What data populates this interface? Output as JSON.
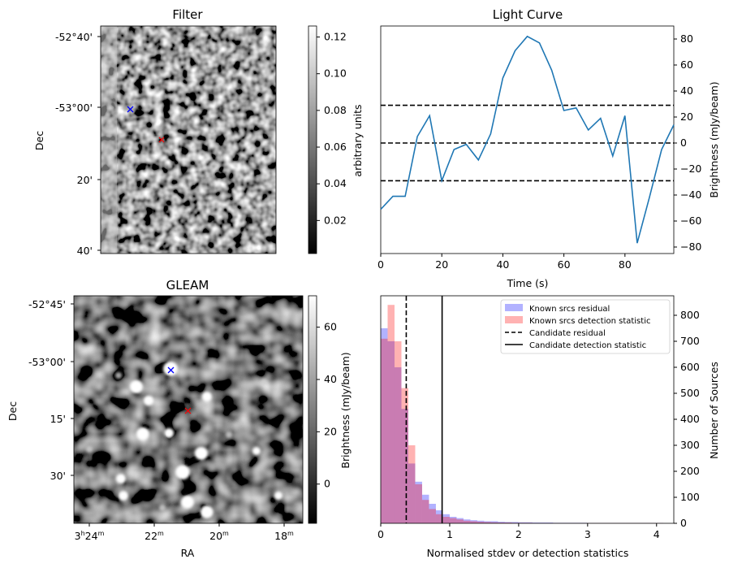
{
  "panels": {
    "filter": {
      "title": "Filter",
      "ylabel": "Dec",
      "yticks": [
        "-52°40'",
        "-53°00'",
        "20'",
        "40'"
      ],
      "colorbar": {
        "label": "arbitrary units",
        "ticks": [
          "0.12",
          "0.10",
          "0.08",
          "0.06",
          "0.04",
          "0.02"
        ],
        "range": [
          0.002,
          0.126
        ]
      },
      "markers": [
        {
          "color": "#0000ff",
          "symbol": "x"
        },
        {
          "color": "#ff0000",
          "symbol": "x"
        }
      ]
    },
    "gleam": {
      "title": "GLEAM",
      "ylabel": "Dec",
      "xlabel": "RA",
      "yticks": [
        "-52°45'",
        "-53°00'",
        "15'",
        "30'"
      ],
      "xticks": [
        {
          "h": "3",
          "hs": "h",
          "m": "24",
          "ms": "m"
        },
        {
          "h": "",
          "hs": "",
          "m": "22",
          "ms": "m"
        },
        {
          "h": "",
          "hs": "",
          "m": "20",
          "ms": "m"
        },
        {
          "h": "",
          "hs": "",
          "m": "18",
          "ms": "m"
        }
      ],
      "colorbar": {
        "label": "Brightness (mJy/beam)",
        "ticks": [
          "60",
          "40",
          "20",
          "0"
        ],
        "range": [
          -15,
          72
        ]
      },
      "markers": [
        {
          "color": "#0000ff",
          "symbol": "x"
        },
        {
          "color": "#ff0000",
          "symbol": "x"
        }
      ]
    }
  },
  "chart_data": [
    {
      "type": "line",
      "title": "Light Curve",
      "xlabel": "Time (s)",
      "ylabel": "Brightness (mJy/beam)",
      "xlim": [
        0,
        96
      ],
      "ylim": [
        -85,
        90
      ],
      "xticks": [
        0,
        20,
        40,
        60,
        80
      ],
      "yticks": [
        -80,
        -60,
        -40,
        -20,
        0,
        20,
        40,
        60,
        80
      ],
      "series": [
        {
          "color": "#1f77b4",
          "x": [
            0,
            4,
            8,
            12,
            16,
            20,
            24,
            28,
            32,
            36,
            40,
            44,
            48,
            52,
            56,
            60,
            64,
            68,
            72,
            76,
            80,
            84,
            88,
            92,
            96
          ],
          "y": [
            -51,
            -41,
            -41,
            5,
            21,
            -29,
            -5,
            -1,
            -13,
            7,
            50,
            71,
            82,
            77,
            56,
            25,
            27,
            10,
            19,
            -10,
            21,
            -77,
            -42,
            -5,
            14
          ]
        }
      ],
      "hlines": [
        {
          "y": 29,
          "style": "dashed",
          "color": "#000000"
        },
        {
          "y": 0,
          "style": "dashed",
          "color": "#000000"
        },
        {
          "y": -29,
          "style": "dashed",
          "color": "#000000"
        }
      ]
    },
    {
      "type": "bar",
      "xlabel": "Normalised stdev or detection statistics",
      "ylabel": "Number of Sources",
      "xlim": [
        0,
        4.25
      ],
      "ylim": [
        0,
        875
      ],
      "xticks": [
        0,
        1,
        2,
        3,
        4
      ],
      "yticks": [
        0,
        100,
        200,
        300,
        400,
        500,
        600,
        700,
        800
      ],
      "bin_width": 0.1,
      "series": [
        {
          "name": "Known srcs residual",
          "color": "#0000ff",
          "alpha": 0.3,
          "x0": 0,
          "values": [
            750,
            700,
            600,
            440,
            230,
            160,
            110,
            75,
            50,
            35,
            25,
            20,
            15,
            12,
            10,
            8,
            8,
            6,
            5,
            5,
            4,
            4,
            3,
            3,
            3,
            2,
            2,
            2,
            2,
            2,
            1,
            1,
            1,
            1,
            1,
            1,
            1,
            1,
            1,
            1,
            1
          ]
        },
        {
          "name": "Known srcs detection statistic",
          "color": "#ff0000",
          "alpha": 0.3,
          "x0": 0,
          "values": [
            710,
            840,
            700,
            520,
            300,
            150,
            90,
            55,
            35,
            25,
            20,
            15,
            10,
            8,
            6,
            5,
            4,
            3,
            3,
            2,
            2,
            2,
            1,
            1,
            1,
            1,
            1,
            1,
            1,
            1,
            1,
            1,
            1,
            1,
            1,
            1,
            1,
            1,
            1,
            1,
            1
          ]
        }
      ],
      "vlines": [
        {
          "name": "Candidate residual",
          "x": 0.37,
          "style": "dashed",
          "color": "#000000"
        },
        {
          "name": "Candidate detection statistic",
          "x": 0.89,
          "style": "solid",
          "color": "#000000"
        }
      ],
      "legend_placement": "top-right"
    }
  ]
}
